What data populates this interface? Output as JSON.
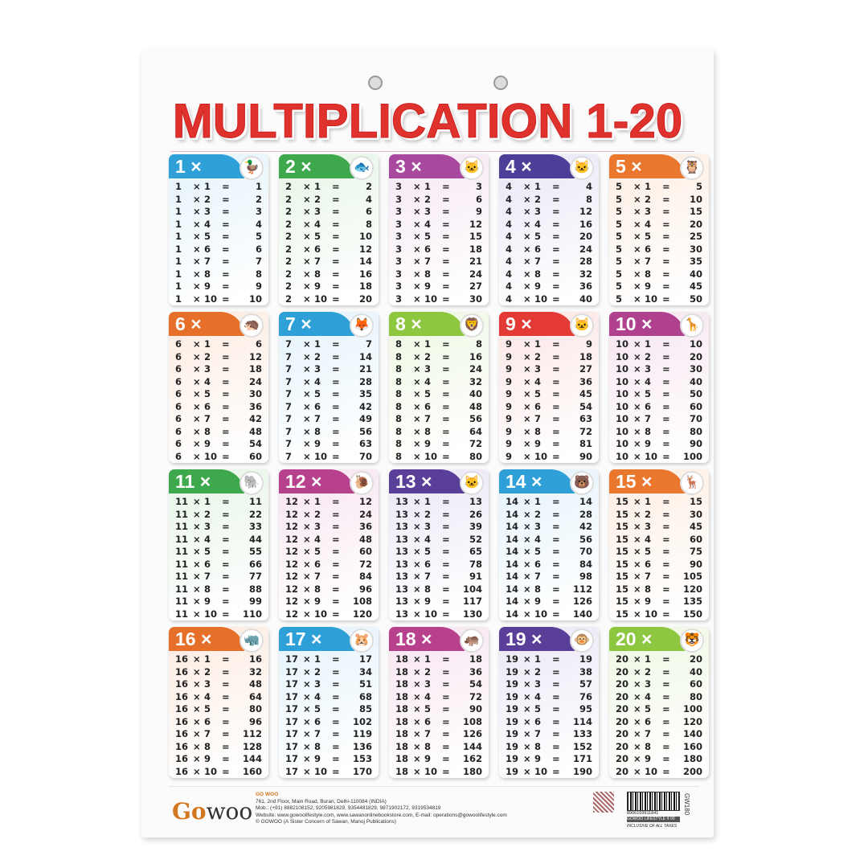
{
  "title": "MULTIPLICATION 1-20",
  "symbols": {
    "times": "×",
    "equals": "="
  },
  "multipliers": [
    1,
    2,
    3,
    4,
    5,
    6,
    7,
    8,
    9,
    10
  ],
  "tables": [
    {
      "n": 1,
      "color": "#2f9fd8",
      "bg": "#e4f3fb",
      "animal": "duck-icon",
      "glyph": "🦆"
    },
    {
      "n": 2,
      "color": "#3ea84c",
      "bg": "#e6f5e6",
      "animal": "fish-icon",
      "glyph": "🐟"
    },
    {
      "n": 3,
      "color": "#a8489e",
      "bg": "#f5e6f3",
      "animal": "cat-icon",
      "glyph": "🐱"
    },
    {
      "n": 4,
      "color": "#4d3f98",
      "bg": "#e8e6f5",
      "animal": "cat-icon",
      "glyph": "🐱"
    },
    {
      "n": 5,
      "color": "#e9782e",
      "bg": "#fdeee2",
      "animal": "owl-icon",
      "glyph": "🦉"
    },
    {
      "n": 6,
      "color": "#e6702a",
      "bg": "#fcebdf",
      "animal": "hedgehog-icon",
      "glyph": "🦔"
    },
    {
      "n": 7,
      "color": "#2f9fd8",
      "bg": "#e4f3fb",
      "animal": "fox-icon",
      "glyph": "🦊"
    },
    {
      "n": 8,
      "color": "#8dc63f",
      "bg": "#eef7e2",
      "animal": "lion-icon",
      "glyph": "🦁"
    },
    {
      "n": 9,
      "color": "#e33a35",
      "bg": "#fbe5e4",
      "animal": "cat-icon",
      "glyph": "🐱"
    },
    {
      "n": 10,
      "color": "#b0418f",
      "bg": "#f6e4f0",
      "animal": "giraffe-icon",
      "glyph": "🦒"
    },
    {
      "n": 11,
      "color": "#3ea84c",
      "bg": "#e6f5e6",
      "animal": "elephant-icon",
      "glyph": "🐘"
    },
    {
      "n": 12,
      "color": "#b8418e",
      "bg": "#f7e4f0",
      "animal": "snail-icon",
      "glyph": "🐌"
    },
    {
      "n": 13,
      "color": "#5a3f98",
      "bg": "#ebe6f5",
      "animal": "cat-icon",
      "glyph": "🐱"
    },
    {
      "n": 14,
      "color": "#2f9fd8",
      "bg": "#e4f3fb",
      "animal": "bear-icon",
      "glyph": "🐻"
    },
    {
      "n": 15,
      "color": "#e9782e",
      "bg": "#fdeee2",
      "animal": "deer-icon",
      "glyph": "🦌"
    },
    {
      "n": 16,
      "color": "#e6702a",
      "bg": "#fcebdf",
      "animal": "rhino-icon",
      "glyph": "🦏"
    },
    {
      "n": 17,
      "color": "#2f9fd8",
      "bg": "#e4f3fb",
      "animal": "hamster-icon",
      "glyph": "🐹"
    },
    {
      "n": 18,
      "color": "#b8418e",
      "bg": "#f7e4f0",
      "animal": "hippo-icon",
      "glyph": "🦛"
    },
    {
      "n": 19,
      "color": "#5a3f98",
      "bg": "#ebe6f5",
      "animal": "monkey-icon",
      "glyph": "🐵"
    },
    {
      "n": 20,
      "color": "#8dc63f",
      "bg": "#eef7e2",
      "animal": "tiger-icon",
      "glyph": "🐯"
    }
  ],
  "products": [
    [
      1,
      2,
      3,
      4,
      5,
      6,
      7,
      8,
      9,
      10
    ],
    [
      2,
      4,
      6,
      8,
      10,
      12,
      14,
      16,
      18,
      20
    ],
    [
      3,
      6,
      9,
      12,
      15,
      18,
      21,
      24,
      27,
      30
    ],
    [
      4,
      8,
      12,
      16,
      20,
      24,
      28,
      32,
      36,
      40
    ],
    [
      5,
      10,
      15,
      20,
      25,
      30,
      35,
      40,
      45,
      50
    ],
    [
      6,
      12,
      18,
      24,
      30,
      36,
      42,
      48,
      54,
      60
    ],
    [
      7,
      14,
      21,
      28,
      35,
      42,
      49,
      56,
      63,
      70
    ],
    [
      8,
      16,
      24,
      32,
      40,
      48,
      56,
      64,
      72,
      80
    ],
    [
      9,
      18,
      27,
      36,
      45,
      54,
      63,
      72,
      81,
      90
    ],
    [
      10,
      20,
      30,
      40,
      50,
      60,
      70,
      80,
      90,
      100
    ],
    [
      11,
      22,
      33,
      44,
      55,
      66,
      77,
      88,
      99,
      110
    ],
    [
      12,
      24,
      36,
      48,
      60,
      72,
      84,
      96,
      108,
      120
    ],
    [
      13,
      26,
      39,
      52,
      65,
      78,
      91,
      104,
      117,
      130
    ],
    [
      14,
      28,
      42,
      56,
      70,
      84,
      98,
      112,
      126,
      140
    ],
    [
      15,
      30,
      45,
      60,
      75,
      90,
      105,
      120,
      135,
      150
    ],
    [
      16,
      32,
      48,
      64,
      80,
      96,
      112,
      128,
      144,
      160
    ],
    [
      17,
      34,
      51,
      68,
      85,
      102,
      119,
      136,
      153,
      170
    ],
    [
      18,
      36,
      54,
      72,
      90,
      108,
      126,
      144,
      162,
      180
    ],
    [
      19,
      38,
      57,
      76,
      95,
      114,
      133,
      152,
      171,
      190
    ],
    [
      20,
      40,
      60,
      80,
      100,
      120,
      140,
      160,
      180,
      200
    ]
  ],
  "footer": {
    "logo": "GOWOO",
    "company": "GO WOO",
    "address": "761, 2nd Floor, Main Road, Burari, Delhi-110084 (INDIA)",
    "mobile": "Mob.: (+91) 8882108152, 9205981829, 9354481829, 9871902172, 9319534819",
    "website": "Website: www.gowoolifestyle.com, www.sawanonlinebookstore.com, E-mail: operations@gowoolifestyle.com",
    "copyright": "© GOWOO (A Sister Concern of Sawan, Manoj Publications)",
    "barcode_number": "8906159911841",
    "price_label": "GOWOO LIFESTYLE",
    "price": "₹ 00",
    "tax_note": "INCLUSIVE OF ALL TAXES",
    "product_code": "GW180"
  }
}
